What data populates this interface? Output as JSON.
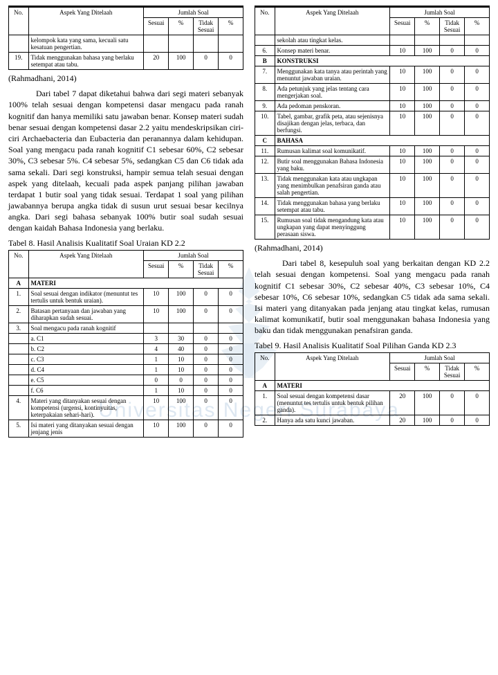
{
  "tables": {
    "t1_header": {
      "no": "No.",
      "aspek": "Aspek Yang Ditelaah",
      "jumlah": "Jumlah Soal",
      "sesuai": "Sesuai",
      "pct": "%",
      "tidak": "Tidak Sesuai",
      "pct2": "%"
    },
    "t1_rows": [
      {
        "no": "",
        "aspek": "kelompok kata yang sama, kecuali satu kesatuan pengertian.",
        "s": "",
        "p": "",
        "ts": "",
        "p2": ""
      },
      {
        "no": "19.",
        "aspek": "Tidak menggunakan bahasa yang berlaku setempat atau tabu.",
        "s": "20",
        "p": "100",
        "ts": "0",
        "p2": "0"
      }
    ],
    "t2_header": {
      "no": "No.",
      "aspek": "Aspek Yang Ditelaah",
      "jumlah": "Jumlah Soal",
      "sesuai": "Sesuai",
      "pct": "%",
      "tidak": "Tidak Sesuai",
      "pct2": "%"
    },
    "t2_rows_cont": [
      {
        "no": "",
        "aspek": "sekolah atau tingkat kelas.",
        "s": "",
        "p": "",
        "ts": "",
        "p2": ""
      },
      {
        "no": "6.",
        "aspek": "Konsep materi benar.",
        "s": "10",
        "p": "100",
        "ts": "0",
        "p2": "0"
      }
    ],
    "t2_sect_b": "KONSTRUKSI",
    "t2_rows_b": [
      {
        "no": "7.",
        "aspek": "Menggunakan kata tanya atau perintah yang menuntut jawaban uraian.",
        "s": "10",
        "p": "100",
        "ts": "0",
        "p2": "0"
      },
      {
        "no": "8.",
        "aspek": "Ada petunjuk yang jelas tentang cara mengerjakan soal.",
        "s": "10",
        "p": "100",
        "ts": "0",
        "p2": "0"
      },
      {
        "no": "9.",
        "aspek": "Ada pedoman penskoran.",
        "s": "10",
        "p": "100",
        "ts": "0",
        "p2": "0"
      },
      {
        "no": "10.",
        "aspek": "Tabel, gambar, grafik peta, atau sejenisnya disajikan dengan jelas, terbaca, dan berfungsi.",
        "s": "10",
        "p": "100",
        "ts": "0",
        "p2": "0"
      }
    ],
    "t2_sect_c": "BAHASA",
    "t2_rows_c": [
      {
        "no": "11.",
        "aspek": "Rumusan kalimat soal komunikatif.",
        "s": "10",
        "p": "100",
        "ts": "0",
        "p2": "0"
      },
      {
        "no": "12.",
        "aspek": "Butir soal menggunakan Bahasa Indonesia yang baku.",
        "s": "10",
        "p": "100",
        "ts": "0",
        "p2": "0"
      },
      {
        "no": "13.",
        "aspek": "Tidak menggunakan kata atau ungkapan yang menimbulkan penafsiran ganda atau salah pengertian.",
        "s": "10",
        "p": "100",
        "ts": "0",
        "p2": "0"
      },
      {
        "no": "14.",
        "aspek": "Tidak menggunakan bahasa yang berlaku setempat atau tabu.",
        "s": "10",
        "p": "100",
        "ts": "0",
        "p2": "0"
      },
      {
        "no": "15.",
        "aspek": "Rumusan soal tidak mengandung kata atau ungkapan yang dapat menyinggung perasaan siswa.",
        "s": "10",
        "p": "100",
        "ts": "0",
        "p2": "0"
      }
    ],
    "t3_header": {
      "no": "No.",
      "aspek": "Aspek Yang Ditelaah",
      "jumlah": "Jumlah Soal",
      "sesuai": "Sesuai",
      "pct": "%",
      "tidak": "Tidak Sesuai",
      "pct2": "%"
    },
    "t3_sect_a": "MATERI",
    "t3_rows": [
      {
        "no": "1.",
        "aspek": "Soal sesuai dengan indikator (menuntut tes tertulis untuk bentuk uraian).",
        "s": "10",
        "p": "100",
        "ts": "0",
        "p2": "0"
      },
      {
        "no": "2.",
        "aspek": "Batasan pertanyaan dan jawaban yang diharapkan sudah sesuai.",
        "s": "10",
        "p": "100",
        "ts": "0",
        "p2": "0"
      },
      {
        "no": "3.",
        "aspek": "Soal mengacu pada ranah kognitif",
        "s": "",
        "p": "",
        "ts": "",
        "p2": ""
      }
    ],
    "t3_cog": [
      {
        "label": "a.   C1",
        "s": "3",
        "p": "30",
        "ts": "0",
        "p2": "0"
      },
      {
        "label": "b.   C2",
        "s": "4",
        "p": "40",
        "ts": "0",
        "p2": "0"
      },
      {
        "label": "c.   C3",
        "s": "1",
        "p": "10",
        "ts": "0",
        "p2": "0"
      },
      {
        "label": "d.   C4",
        "s": "1",
        "p": "10",
        "ts": "0",
        "p2": "0"
      },
      {
        "label": "e.   C5",
        "s": "0",
        "p": "0",
        "ts": "0",
        "p2": "0"
      },
      {
        "label": "f.   C6",
        "s": "1",
        "p": "10",
        "ts": "0",
        "p2": "0"
      }
    ],
    "t3_rows2": [
      {
        "no": "4.",
        "aspek": "Materi yang ditanyakan sesuai dengan kompetensi (urgensi, kontinyuitas, keterpakaian sehari-hari).",
        "s": "10",
        "p": "100",
        "ts": "0",
        "p2": "0"
      },
      {
        "no": "5.",
        "aspek": "Isi materi yang ditanyakan sesuai dengan jenjang jenis",
        "s": "10",
        "p": "100",
        "ts": "0",
        "p2": "0"
      }
    ],
    "t4_header": {
      "no": "No.",
      "aspek": "Aspek Yang Ditelaah",
      "jumlah": "Jumlah Soal",
      "sesuai": "Sesuai",
      "pct": "%",
      "tidak": "Tidak Sesuai",
      "pct2": "%"
    },
    "t4_sect_a": "MATERI",
    "t4_rows": [
      {
        "no": "1.",
        "aspek": "Soal sesuai dengan kompetensi dasar (menuntut tes tertulis untuk bentuk pilihan ganda).",
        "s": "20",
        "p": "100",
        "ts": "0",
        "p2": "0"
      },
      {
        "no": "2.",
        "aspek": "Hanya ada satu kunci jawaban.",
        "s": "20",
        "p": "100",
        "ts": "0",
        "p2": "0"
      }
    ]
  },
  "text": {
    "source1": "(Rahmadhani, 2014)",
    "para1": "Dari tabel 7 dapat diketahui bahwa dari segi materi sebanyak 100% telah sesuai dengan kompetensi dasar mengacu pada ranah kognitif dan hanya memiliki satu jawaban benar. Konsep materi sudah benar sesuai dengan kompetensi dasar 2.2 yaitu mendeskripsikan ciri-ciri Archaebacteria dan Eubacteria dan peranannya dalam kehidupan. Soal yang mengacu pada ranah kognitif C1 sebesar 60%, C2 sebesar 30%, C3 sebesar 5%. C4 sebesar 5%, sedangkan C5 dan C6 tidak ada sama sekali. Dari segi konstruksi, hampir semua telah sesuai dengan aspek yang ditelaah, kecuali pada aspek panjang pilihan jawaban terdapat 1 butir soal yang tidak sesuai. Terdapat 1 soal yang pilihan jawabannya berupa angka  tidak di susun urut sesuai besar kecilnya angka. Dari segi bahasa sebanyak 100% butir soal sudah sesuai dengan kaidah Bahasa Indonesia yang berlaku.",
    "cap8": "Tabel 8. Hasil Analisis Kualitatif Soal Uraian KD 2.2",
    "source2": "(Rahmadhani, 2014)",
    "para2": "Dari tabel 8, kesepuluh soal yang berkaitan dengan KD 2.2 telah sesuai dengan kompetensi. Soal yang mengacu pada ranah kognitif C1 sebesar 30%, C2 sebesar 40%, C3 sebesar 10%, C4 sebesar 10%, C6 sebesar 10%, sedangkan  C5 tidak ada sama sekali. Isi materi yang ditanyakan pada jenjang atau tingkat kelas, rumusan kalimat komunikatif, butir soal menggunakan bahasa Indonesia yang baku dan tidak menggunakan penafsiran ganda.",
    "cap9": "Tabel 9. Hasil Analisis Kualitatif Soal Pilihan Ganda KD 2.3"
  },
  "labels": {
    "B": "B",
    "C": "C",
    "A": "A"
  },
  "colors": {
    "watermark": "#7aa3c9"
  }
}
